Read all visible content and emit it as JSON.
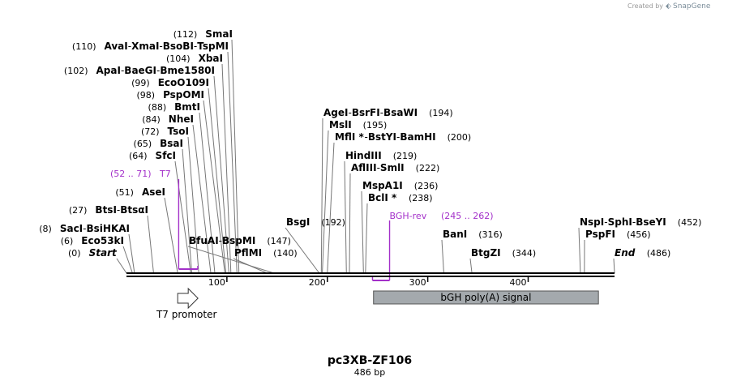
{
  "credit": {
    "prefix": "Created by",
    "brand": "SnapGene"
  },
  "map": {
    "name": "pc3XB-ZF106",
    "length_label": "486 bp",
    "length": 486,
    "ticks": [
      {
        "pos": 100,
        "label": "100"
      },
      {
        "pos": 200,
        "label": "200"
      },
      {
        "pos": 300,
        "label": "300"
      },
      {
        "pos": 400,
        "label": "400"
      }
    ]
  },
  "sites": [
    {
      "pos": 112,
      "segments": [
        {
          "name": "SmaI",
          "pos_label": "(112)"
        }
      ]
    },
    {
      "pos": 110,
      "segments": [
        {
          "name": "AvaI",
          "pos_label": "(110)"
        },
        {
          "name": "XmaI"
        },
        {
          "name": "BsoBI"
        },
        {
          "name": "TspMI"
        }
      ]
    },
    {
      "pos": 104,
      "segments": [
        {
          "name": "XbaI",
          "pos_label": "(104)"
        }
      ]
    },
    {
      "pos": 102,
      "segments": [
        {
          "name": "ApaI",
          "pos_label": "(102)"
        },
        {
          "name": "BaeGI"
        },
        {
          "name": "Bme1580I"
        }
      ]
    },
    {
      "pos": 99,
      "segments": [
        {
          "name": "EcoO109I",
          "pos_label": "(99)"
        }
      ]
    },
    {
      "pos": 98,
      "segments": [
        {
          "name": "PspOMI",
          "pos_label": "(98)"
        }
      ]
    },
    {
      "pos": 88,
      "segments": [
        {
          "name": "BmtI",
          "pos_label": "(88)"
        }
      ]
    },
    {
      "pos": 84,
      "segments": [
        {
          "name": "NheI",
          "pos_label": "(84)"
        }
      ]
    },
    {
      "pos": 72,
      "segments": [
        {
          "name": "TsoI",
          "pos_label": "(72)"
        }
      ]
    },
    {
      "pos": 65,
      "segments": [
        {
          "name": "BsaI",
          "pos_label": "(65)"
        }
      ]
    },
    {
      "pos": 64,
      "segments": [
        {
          "name": "SfcI",
          "pos_label": "(64)"
        }
      ]
    },
    {
      "pos": 51,
      "segments": [
        {
          "name": "AseI",
          "pos_label": "(51)"
        }
      ]
    },
    {
      "pos": 27,
      "segments": [
        {
          "name": "BtsI",
          "pos_label": "(27)"
        },
        {
          "name": "BtsαI"
        }
      ]
    },
    {
      "pos": 8,
      "segments": [
        {
          "name": "SacI",
          "pos_label": "(8)"
        },
        {
          "name": "BsiHKAI"
        }
      ]
    },
    {
      "pos": 6,
      "segments": [
        {
          "name": "Eco53kI",
          "pos_label": "(6)"
        }
      ]
    },
    {
      "pos": 0,
      "segments": [
        {
          "name": "Start",
          "pos_label": "(0)",
          "italic": true
        }
      ]
    },
    {
      "pos": 147,
      "segments": [
        {
          "name": "BfuAI",
          "pos_label": "(147)"
        },
        {
          "name": "BspMI"
        }
      ]
    },
    {
      "pos": 140,
      "segments": [
        {
          "name": "PflMI",
          "pos_label": "(140)"
        }
      ]
    },
    {
      "pos": 192,
      "segments": [
        {
          "name": "BsgI",
          "pos_label": "(192)"
        }
      ]
    },
    {
      "pos": 194,
      "segments": [
        {
          "name": "AgeI",
          "pos_label": "(194)"
        },
        {
          "name": "BsrFI"
        },
        {
          "name": "BsaWI"
        }
      ]
    },
    {
      "pos": 195,
      "segments": [
        {
          "name": "MslI",
          "pos_label": "(195)"
        }
      ]
    },
    {
      "pos": 200,
      "segments": [
        {
          "name": "MflI *",
          "pos_label": "(200)"
        },
        {
          "name": "BstYI"
        },
        {
          "name": "BamHI"
        }
      ]
    },
    {
      "pos": 219,
      "segments": [
        {
          "name": "HindIII",
          "pos_label": "(219)"
        }
      ]
    },
    {
      "pos": 222,
      "segments": [
        {
          "name": "AflIII",
          "pos_label": "(222)"
        },
        {
          "name": "SmlI"
        }
      ]
    },
    {
      "pos": 236,
      "segments": [
        {
          "name": "MspA1I",
          "pos_label": "(236)"
        }
      ]
    },
    {
      "pos": 238,
      "segments": [
        {
          "name": "BclI *",
          "pos_label": "(238)"
        }
      ]
    },
    {
      "pos": 316,
      "segments": [
        {
          "name": "BanI",
          "pos_label": "(316)"
        }
      ]
    },
    {
      "pos": 344,
      "segments": [
        {
          "name": "BtgZI",
          "pos_label": "(344)"
        }
      ]
    },
    {
      "pos": 452,
      "segments": [
        {
          "name": "NspI",
          "pos_label": "(452)"
        },
        {
          "name": "SphI"
        },
        {
          "name": "BseYI"
        }
      ]
    },
    {
      "pos": 456,
      "segments": [
        {
          "name": "PspFI",
          "pos_label": "(456)"
        }
      ]
    },
    {
      "pos": 486,
      "segments": [
        {
          "name": "End",
          "pos_label": "(486)",
          "italic": true
        }
      ]
    }
  ],
  "primers": [
    {
      "name": "T7",
      "range_label": "(52 .. 71)",
      "start": 52,
      "end": 71,
      "strand": "forward"
    },
    {
      "name": "BGH-rev",
      "range_label": "(245 .. 262)",
      "start": 245,
      "end": 262,
      "strand": "reverse"
    }
  ],
  "features": [
    {
      "name": "T7 promoter",
      "start": 51,
      "end": 70,
      "kind": "promoter-arrow"
    },
    {
      "name": "bGH poly(A) signal",
      "start": 246,
      "end": 470,
      "kind": "box"
    }
  ],
  "colors": {
    "primer": "#a330c9",
    "feature_fill": "#a4a9ad",
    "backbone": "#000000",
    "leader": "#777777"
  }
}
